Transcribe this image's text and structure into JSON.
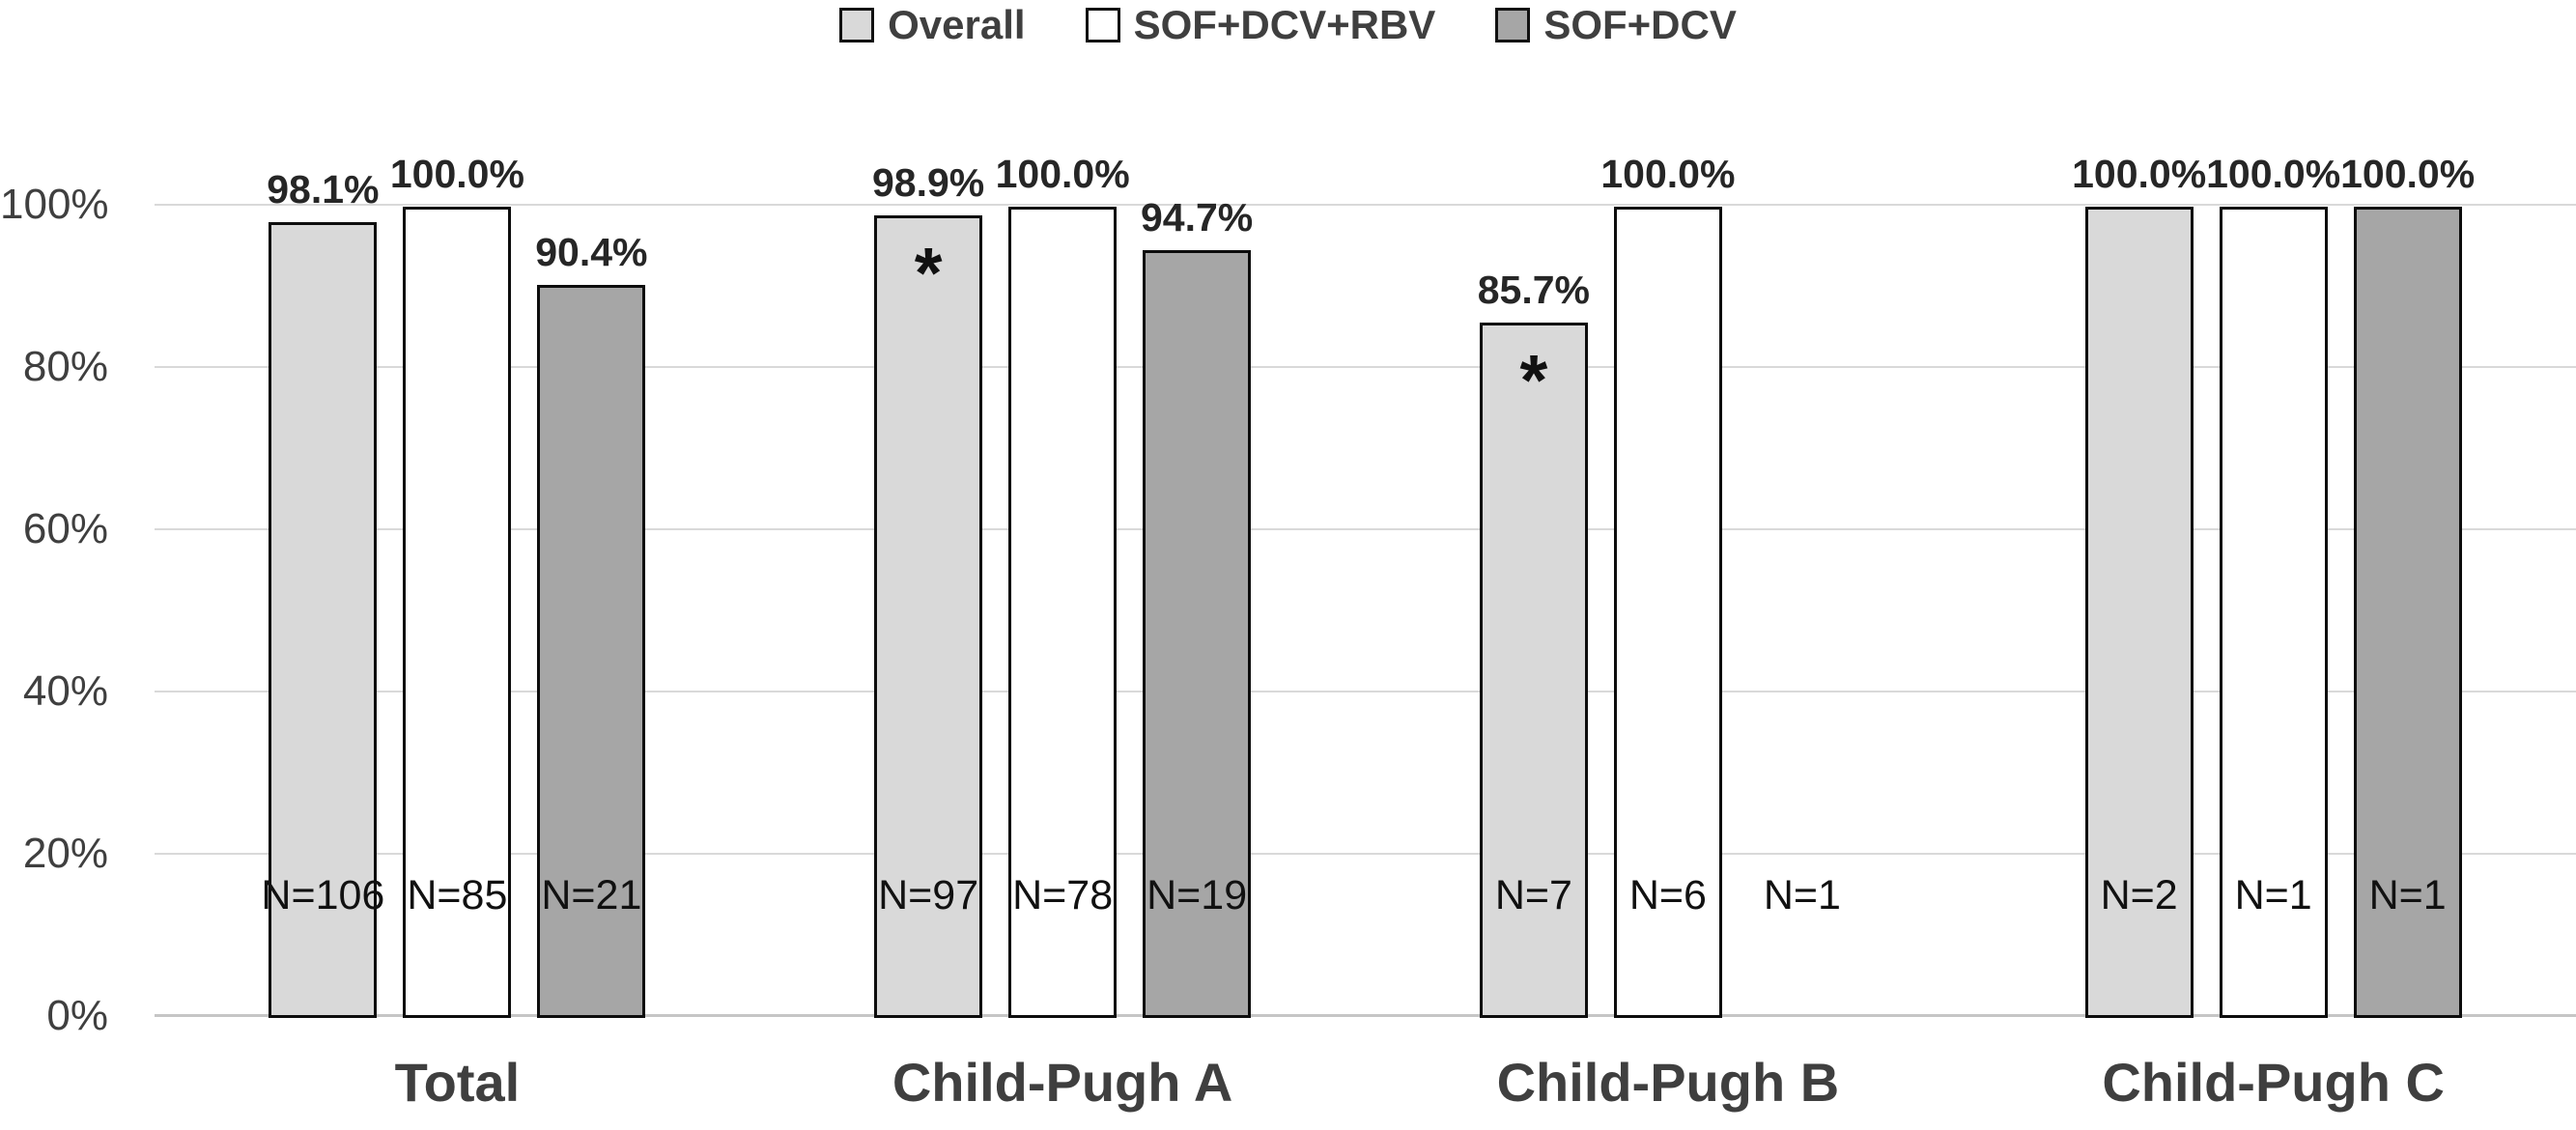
{
  "legend": {
    "items": [
      {
        "id": "overall",
        "label": "Overall",
        "color": "#d9d9d9"
      },
      {
        "id": "sof-dcv-rbv",
        "label": "SOF+DCV+RBV",
        "color": "#ffffff"
      },
      {
        "id": "sof-dcv",
        "label": "SOF+DCV",
        "color": "#a6a6a6"
      }
    ]
  },
  "chart_data": {
    "type": "bar",
    "title": "",
    "xlabel": "",
    "ylabel": "",
    "categories": [
      "Total",
      "Child-Pugh A",
      "Child-Pugh B",
      "Child-Pugh C"
    ],
    "series": [
      {
        "name": "Overall",
        "color": "#d9d9d9",
        "values": [
          98.1,
          98.9,
          85.7,
          100.0
        ],
        "value_labels": [
          "98.1%",
          "98.9%",
          "85.7%",
          "100.0%"
        ],
        "n_labels": [
          "N=106",
          "N=97",
          "N=7",
          "N=2"
        ],
        "asterisk": [
          false,
          true,
          true,
          false
        ]
      },
      {
        "name": "SOF+DCV+RBV",
        "color": "#ffffff",
        "values": [
          100.0,
          100.0,
          100.0,
          100.0
        ],
        "value_labels": [
          "100.0%",
          "100.0%",
          "100.0%",
          "100.0%"
        ],
        "n_labels": [
          "N=85",
          "N=78",
          "N=6",
          "N=1"
        ],
        "asterisk": [
          false,
          false,
          false,
          false
        ]
      },
      {
        "name": "SOF+DCV",
        "color": "#a6a6a6",
        "values": [
          90.4,
          94.7,
          null,
          100.0
        ],
        "value_labels": [
          "90.4%",
          "94.7%",
          null,
          "100.0%"
        ],
        "n_labels": [
          "N=21",
          "N=19",
          "N=1",
          "N=1"
        ],
        "asterisk": [
          false,
          false,
          false,
          false
        ]
      }
    ],
    "y_ticks": [
      "0%",
      "20%",
      "40%",
      "60%",
      "80%",
      "100%"
    ],
    "ylim": [
      0,
      100
    ],
    "grid": true,
    "legend_position": "top"
  }
}
